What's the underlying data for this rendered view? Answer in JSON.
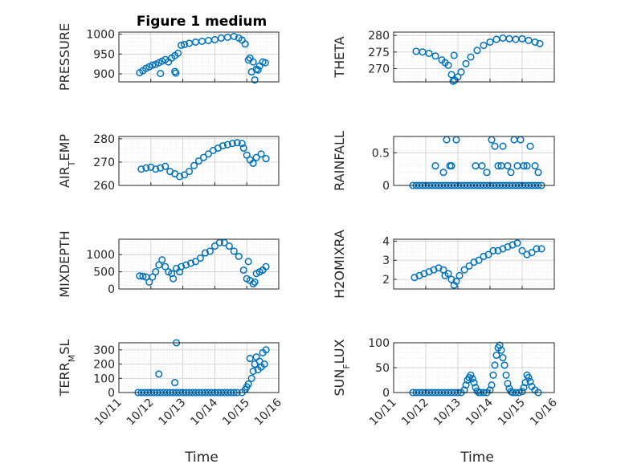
{
  "chart_data": {
    "type": "scatter",
    "title": "Figure 1 medium",
    "marker_color": "#0072BD",
    "grid": "on (major + minor, dotted)",
    "x_tick_labels": [
      "10/11",
      "10/12",
      "10/13",
      "10/14",
      "10/15",
      "10/16"
    ],
    "xlabel": "Time",
    "panels": [
      {
        "key": "pressure",
        "ylabel": "PRESSURE",
        "ylabel_sub": "",
        "ylabel_sub_after": "",
        "ylim": [
          880,
          1005
        ],
        "yticks": [
          900,
          950,
          1000
        ],
        "x": [
          11.65,
          11.75,
          11.85,
          11.95,
          12.05,
          12.15,
          12.25,
          12.35,
          12.45,
          12.55,
          12.65,
          12.75,
          12.85,
          12.95,
          13.05,
          13.2,
          13.4,
          13.6,
          13.8,
          14.0,
          14.2,
          14.4,
          14.6,
          14.75,
          14.85,
          14.95,
          15.1,
          15.2,
          15.3,
          15.4,
          15.5,
          15.58,
          12.75,
          12.78,
          12.3,
          15.05,
          15.15,
          15.25,
          15.35
        ],
        "y": [
          903,
          908,
          914,
          918,
          922,
          924,
          928,
          932,
          936,
          930,
          940,
          946,
          952,
          972,
          974,
          977,
          980,
          982,
          984,
          986,
          990,
          992,
          994,
          990,
          985,
          975,
          940,
          930,
          912,
          920,
          930,
          928,
          906,
          902,
          901,
          935,
          905,
          885,
          910
        ]
      },
      {
        "key": "theta",
        "ylabel": "THETA",
        "ylabel_sub": "",
        "ylabel_sub_after": "",
        "ylim": [
          266,
          281
        ],
        "yticks": [
          270,
          275,
          280
        ],
        "x": [
          11.7,
          11.9,
          12.1,
          12.3,
          12.5,
          12.6,
          12.7,
          12.8,
          12.85,
          12.9,
          13.0,
          13.1,
          13.25,
          13.4,
          13.6,
          13.8,
          14.0,
          14.2,
          14.4,
          14.6,
          14.8,
          15.0,
          15.2,
          15.4,
          15.55,
          12.88
        ],
        "y": [
          275.2,
          275.0,
          274.6,
          273.8,
          272.6,
          271.8,
          271.0,
          268.2,
          266.2,
          266.5,
          267.5,
          269.0,
          271.5,
          273.5,
          275.5,
          277.0,
          278.0,
          278.8,
          279.2,
          279.0,
          278.8,
          279.0,
          278.5,
          278.0,
          277.5,
          274.0
        ]
      },
      {
        "key": "air_temp",
        "ylabel": "AIR",
        "ylabel_sub": "T",
        "ylabel_sub_after": "EMP",
        "ylim": [
          260,
          281
        ],
        "yticks": [
          260,
          270,
          280
        ],
        "x": [
          11.7,
          11.85,
          12.0,
          12.15,
          12.3,
          12.45,
          12.6,
          12.75,
          12.9,
          13.05,
          13.2,
          13.35,
          13.5,
          13.65,
          13.8,
          13.95,
          14.1,
          14.25,
          14.4,
          14.55,
          14.7,
          14.85,
          14.9,
          15.0,
          15.1,
          15.2,
          15.3,
          15.45,
          15.6
        ],
        "y": [
          267.0,
          267.5,
          267.8,
          267.0,
          267.5,
          268.2,
          266.0,
          265.0,
          263.8,
          264.5,
          266.0,
          268.5,
          270.5,
          272.0,
          273.5,
          275.0,
          276.0,
          277.0,
          277.5,
          278.0,
          278.3,
          278.0,
          276.0,
          273.0,
          271.0,
          269.5,
          272.0,
          273.5,
          271.5
        ]
      },
      {
        "key": "rainfall",
        "ylabel": "RAINFALL",
        "ylabel_sub": "",
        "ylabel_sub_after": "",
        "ylim": [
          0,
          0.75
        ],
        "yticks": [
          0,
          0.5
        ],
        "x": [
          11.6,
          11.7,
          11.8,
          11.9,
          12.0,
          12.1,
          12.2,
          12.3,
          12.4,
          12.5,
          12.6,
          12.7,
          12.8,
          12.9,
          13.0,
          13.1,
          13.2,
          13.3,
          13.4,
          13.5,
          13.6,
          13.7,
          13.8,
          13.9,
          14.0,
          14.1,
          14.2,
          14.3,
          14.4,
          14.5,
          14.6,
          14.7,
          14.8,
          14.9,
          15.0,
          15.1,
          15.2,
          15.3,
          15.4,
          15.5,
          15.6,
          12.3,
          12.55,
          12.65,
          12.75,
          12.8,
          12.95,
          13.55,
          13.75,
          13.9,
          14.05,
          14.15,
          14.25,
          14.35,
          14.4,
          14.55,
          14.65,
          14.75,
          14.85,
          14.95,
          15.05,
          15.15,
          15.25,
          15.4,
          15.5
        ],
        "y": [
          0,
          0,
          0,
          0,
          0,
          0,
          0,
          0,
          0,
          0,
          0,
          0,
          0,
          0,
          0,
          0,
          0,
          0,
          0,
          0,
          0,
          0,
          0,
          0,
          0,
          0,
          0,
          0,
          0,
          0,
          0,
          0,
          0,
          0,
          0,
          0,
          0,
          0,
          0,
          0,
          0,
          0.3,
          0.2,
          0.7,
          0.3,
          0.3,
          0.7,
          0.3,
          0.3,
          0.2,
          0.7,
          0.6,
          0.3,
          0.3,
          0.6,
          0.3,
          0.2,
          0.7,
          0.3,
          0.7,
          0.3,
          0.3,
          0.6,
          0.3,
          0.2
        ]
      },
      {
        "key": "mixdepth",
        "ylabel": "MIXDEPTH",
        "ylabel_sub": "",
        "ylabel_sub_after": "",
        "ylim": [
          0,
          1450
        ],
        "yticks": [
          0,
          500,
          1000
        ],
        "x": [
          11.65,
          11.75,
          11.85,
          11.95,
          12.05,
          12.15,
          12.25,
          12.35,
          12.45,
          12.55,
          12.65,
          12.7,
          12.8,
          12.95,
          13.1,
          13.25,
          13.4,
          13.55,
          13.7,
          13.85,
          14.0,
          14.15,
          14.3,
          14.45,
          14.6,
          14.75,
          14.9,
          15.0,
          15.1,
          15.2,
          15.3,
          15.4,
          15.5,
          15.6,
          12.9,
          15.05,
          15.25
        ],
        "y": [
          380,
          370,
          350,
          200,
          350,
          500,
          700,
          850,
          650,
          500,
          450,
          300,
          600,
          650,
          700,
          750,
          800,
          900,
          1050,
          1100,
          1250,
          1350,
          1350,
          1250,
          1100,
          950,
          550,
          300,
          250,
          150,
          450,
          500,
          550,
          650,
          500,
          800,
          200
        ]
      },
      {
        "key": "h2omixra",
        "ylabel": "H2OMIXRA",
        "ylabel_sub": "",
        "ylabel_sub_after": "",
        "ylim": [
          1.5,
          4.1
        ],
        "yticks": [
          2,
          3,
          4
        ],
        "x": [
          11.65,
          11.8,
          11.95,
          12.1,
          12.25,
          12.4,
          12.55,
          12.7,
          12.8,
          12.88,
          12.95,
          13.05,
          13.2,
          13.35,
          13.5,
          13.65,
          13.8,
          13.95,
          14.1,
          14.25,
          14.4,
          14.55,
          14.7,
          14.85,
          15.0,
          15.15,
          15.3,
          15.45,
          15.6,
          12.6
        ],
        "y": [
          2.1,
          2.2,
          2.3,
          2.4,
          2.5,
          2.6,
          2.5,
          2.3,
          2.0,
          1.7,
          1.9,
          2.2,
          2.5,
          2.7,
          2.9,
          3.0,
          3.2,
          3.3,
          3.5,
          3.5,
          3.6,
          3.7,
          3.8,
          3.9,
          3.5,
          3.3,
          3.4,
          3.6,
          3.6,
          2.2
        ]
      },
      {
        "key": "terr_msl",
        "ylabel": "TERR",
        "ylabel_sub": "M",
        "ylabel_sub_after": "SL",
        "ylim": [
          0,
          350
        ],
        "yticks": [
          0,
          100,
          200,
          300
        ],
        "x": [
          11.6,
          11.7,
          11.8,
          11.9,
          12.0,
          12.1,
          12.2,
          12.3,
          12.4,
          12.5,
          12.6,
          12.7,
          12.8,
          12.9,
          13.0,
          13.1,
          13.2,
          13.3,
          13.4,
          13.5,
          13.6,
          13.7,
          13.8,
          13.9,
          14.0,
          14.1,
          14.2,
          14.3,
          14.4,
          14.5,
          14.6,
          14.7,
          14.85,
          14.95,
          15.05,
          15.15,
          15.2,
          15.25,
          15.3,
          15.35,
          15.4,
          15.45,
          15.5,
          15.55,
          15.6,
          12.25,
          12.75,
          12.8,
          15.0,
          15.1
        ],
        "y": [
          0,
          0,
          0,
          0,
          0,
          0,
          0,
          0,
          0,
          0,
          0,
          0,
          0,
          0,
          0,
          0,
          0,
          0,
          0,
          0,
          0,
          0,
          0,
          0,
          0,
          0,
          0,
          0,
          0,
          0,
          0,
          0,
          0,
          20,
          60,
          100,
          150,
          200,
          250,
          160,
          220,
          180,
          280,
          200,
          300,
          130,
          70,
          350,
          40,
          240
        ]
      },
      {
        "key": "sun_flux",
        "ylabel": "SUN",
        "ylabel_sub": "F",
        "ylabel_sub_after": "LUX",
        "ylim": [
          0,
          100
        ],
        "yticks": [
          0,
          50,
          100
        ],
        "x": [
          11.6,
          11.7,
          11.8,
          11.9,
          12.0,
          12.1,
          12.2,
          12.3,
          12.4,
          12.5,
          12.6,
          12.7,
          12.8,
          12.9,
          13.0,
          13.1,
          13.2,
          13.25,
          13.3,
          13.35,
          13.4,
          13.45,
          13.5,
          13.55,
          13.6,
          13.65,
          13.7,
          13.8,
          13.9,
          14.0,
          14.05,
          14.1,
          14.15,
          14.2,
          14.25,
          14.3,
          14.35,
          14.4,
          14.45,
          14.5,
          14.55,
          14.6,
          14.65,
          14.7,
          14.8,
          14.9,
          15.0,
          15.05,
          15.1,
          15.15,
          15.2,
          15.25,
          15.3,
          15.4,
          15.5
        ],
        "y": [
          0,
          0,
          0,
          0,
          0,
          0,
          0,
          0,
          0,
          0,
          0,
          0,
          0,
          0,
          0,
          0,
          5,
          15,
          25,
          30,
          35,
          28,
          20,
          10,
          3,
          0,
          0,
          0,
          0,
          5,
          15,
          35,
          55,
          75,
          90,
          95,
          85,
          70,
          55,
          35,
          18,
          8,
          2,
          0,
          0,
          0,
          2,
          10,
          20,
          35,
          30,
          22,
          12,
          5,
          0
        ]
      }
    ]
  }
}
